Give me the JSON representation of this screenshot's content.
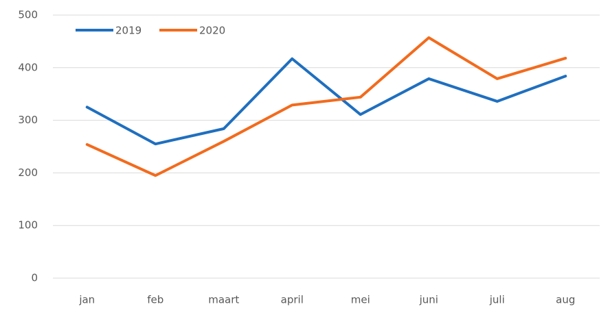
{
  "chart_data": {
    "type": "line",
    "categories": [
      "jan",
      "feb",
      "maart",
      "april",
      "mei",
      "juni",
      "juli",
      "aug"
    ],
    "series": [
      {
        "name": "2019",
        "color": "#1f6fbf",
        "values": [
          325,
          255,
          284,
          417,
          311,
          379,
          336,
          384
        ]
      },
      {
        "name": "2020",
        "color": "#f26b1d",
        "values": [
          254,
          195,
          260,
          329,
          344,
          457,
          379,
          418
        ]
      }
    ],
    "ylim": [
      0,
      500
    ],
    "yticks": [
      0,
      100,
      200,
      300,
      400,
      500
    ],
    "grid": true,
    "legend": "top-left"
  }
}
